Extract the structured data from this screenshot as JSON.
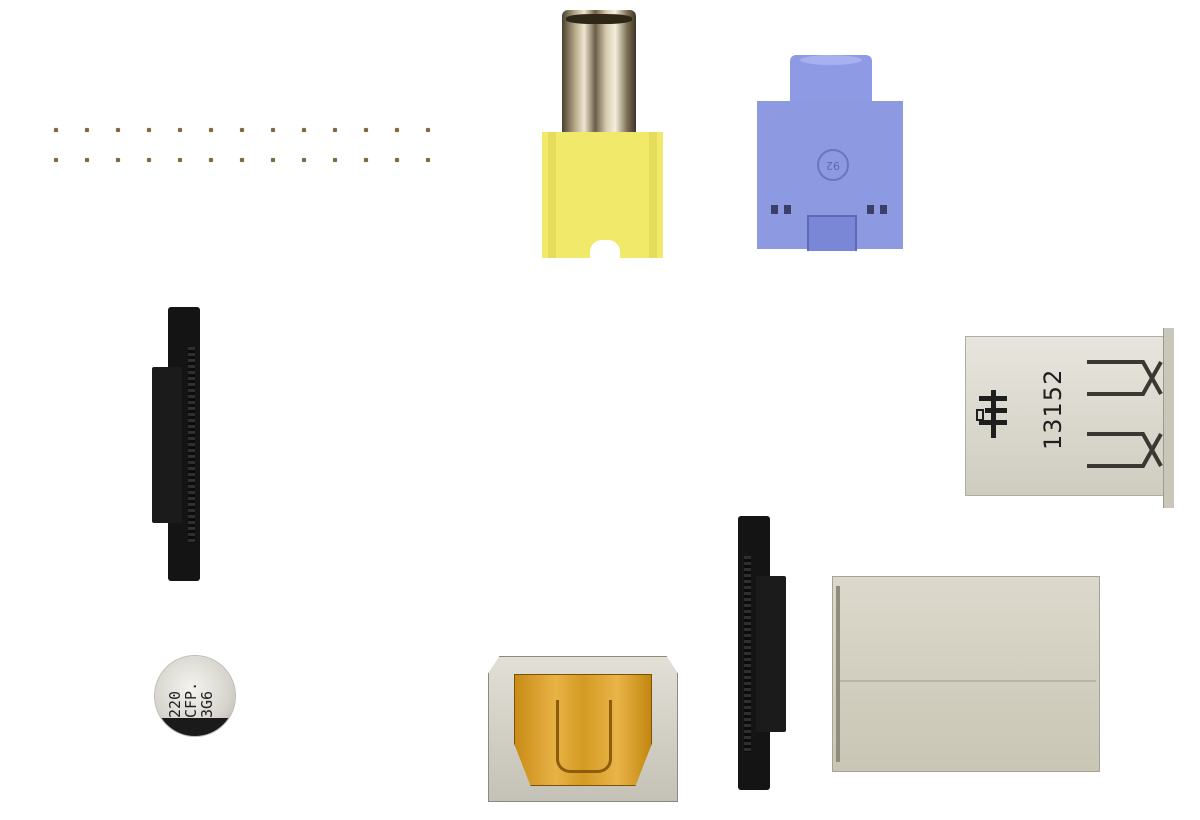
{
  "scene": {
    "background": "#ffffff",
    "components": [
      {
        "id": "pin-header",
        "icon": "pin-header-icon"
      },
      {
        "id": "rca-jack",
        "icon": "rca-jack-icon",
        "color": "#f1e96a"
      },
      {
        "id": "audio-jack",
        "icon": "audio-jack-icon",
        "color": "#8d99e0",
        "marking": "92"
      },
      {
        "id": "card-connector-1",
        "icon": "card-connector-icon",
        "color": "#141414"
      },
      {
        "id": "usb-port",
        "icon": "usb-icon",
        "marking": "13152"
      },
      {
        "id": "card-connector-2",
        "icon": "card-connector-icon",
        "color": "#141414"
      },
      {
        "id": "smd-capacitor",
        "icon": "capacitor-icon",
        "marking": [
          "220",
          "CFP.",
          "3G6"
        ]
      },
      {
        "id": "hdmi-port",
        "icon": "hdmi-icon",
        "color": "#e0a836"
      },
      {
        "id": "rj45-jack",
        "icon": "rj45-icon"
      }
    ]
  },
  "labels": {
    "audio_marking": "92",
    "usb_marking": "13152",
    "cap_line1": "220",
    "cap_line2": "CFP.",
    "cap_line3": "3G6"
  }
}
